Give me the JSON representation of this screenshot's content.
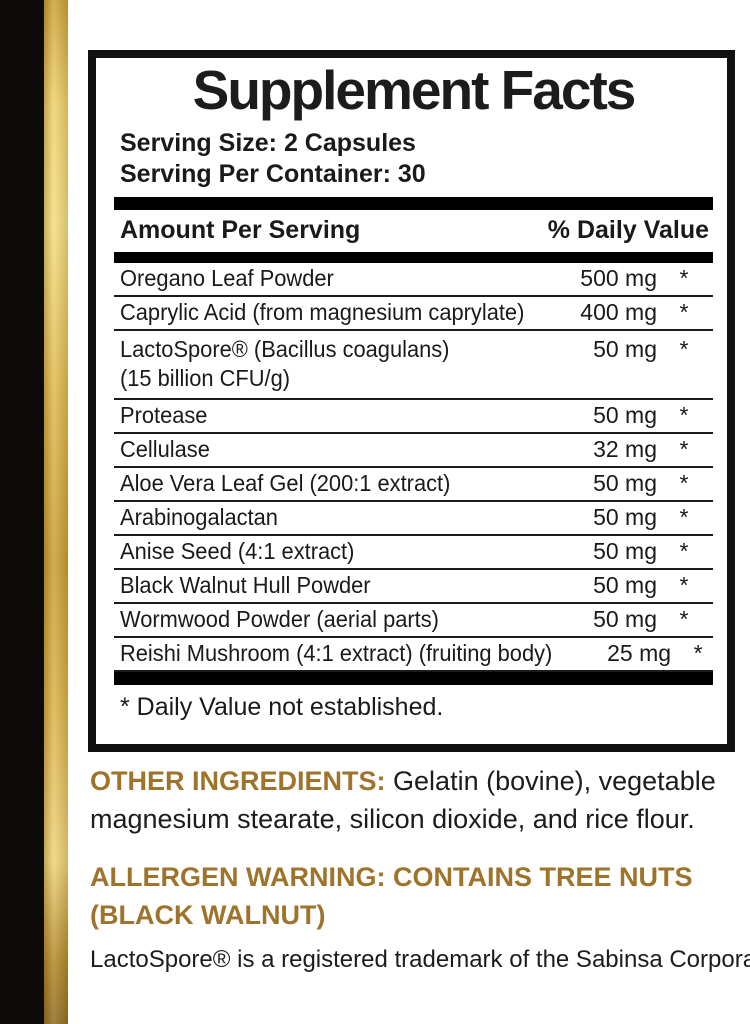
{
  "colors": {
    "accent_gold": "#9e732c",
    "text_black": "#1a1a1a",
    "strip_black": "#0c0b09",
    "strip_gold_light": "#f2dd80",
    "strip_gold_dark": "#8a681c"
  },
  "panel": {
    "title": "Supplement Facts",
    "serving_size": "Serving Size: 2 Capsules",
    "servings_per_container": "Serving Per Container: 30",
    "columns": {
      "amount": "Amount Per Serving",
      "daily_value": "% Daily Value"
    },
    "rows": [
      {
        "name": "Oregano Leaf Powder",
        "amount": "500 mg",
        "dv": "*"
      },
      {
        "name": "Caprylic Acid (from magnesium caprylate)",
        "amount": "400 mg",
        "dv": "*"
      },
      {
        "name": "LactoSpore® (Bacillus coagulans)",
        "name2": "(15 billion CFU/g)",
        "amount": "50 mg",
        "dv": "*"
      },
      {
        "name": "Protease",
        "amount": "50 mg",
        "dv": "*"
      },
      {
        "name": "Cellulase",
        "amount": "32 mg",
        "dv": "*"
      },
      {
        "name": "Aloe Vera Leaf Gel (200:1 extract)",
        "amount": "50 mg",
        "dv": "*"
      },
      {
        "name": "Arabinogalactan",
        "amount": "50 mg",
        "dv": "*"
      },
      {
        "name": "Anise Seed (4:1 extract)",
        "amount": "50 mg",
        "dv": "*"
      },
      {
        "name": "Black Walnut Hull Powder",
        "amount": "50 mg",
        "dv": "*"
      },
      {
        "name": "Wormwood Powder (aerial parts)",
        "amount": "50 mg",
        "dv": "*"
      },
      {
        "name": "Reishi Mushroom (4:1 extract) (fruiting body)",
        "amount": "25 mg",
        "dv": "*"
      }
    ],
    "footnote": "* Daily Value not established."
  },
  "other_ingredients": {
    "label": "OTHER INGREDIENTS:",
    "text_line1": "Gelatin (bovine), vegetable",
    "text_line2": "magnesium stearate, silicon dioxide, and rice flour."
  },
  "allergen_warning": {
    "line1": "ALLERGEN WARNING: CONTAINS TREE NUTS",
    "line2": "(BLACK WALNUT)"
  },
  "trademark_note": "LactoSpore® is a registered trademark of the Sabinsa Corporation"
}
